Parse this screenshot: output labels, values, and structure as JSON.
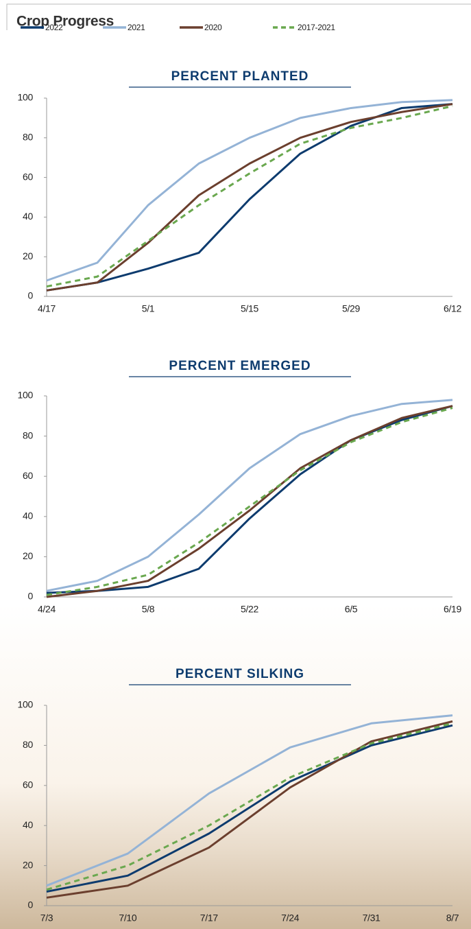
{
  "header": {
    "title": "Crop Progress"
  },
  "chart_data": [
    {
      "type": "line",
      "title": "PERCENT PLANTED",
      "categories": [
        "4/17",
        null,
        "5/1",
        null,
        "5/15",
        null,
        "5/29",
        null,
        "6/12"
      ],
      "series": [
        {
          "name": "2022",
          "color": "#0d3b6e",
          "values": [
            3,
            7,
            14,
            22,
            49,
            72,
            86,
            95,
            97
          ]
        },
        {
          "name": "2021",
          "color": "#94b3d6",
          "values": [
            8,
            17,
            46,
            67,
            80,
            90,
            95,
            98,
            99
          ]
        },
        {
          "name": "2020",
          "color": "#6b3f2e",
          "values": [
            3,
            7,
            27,
            51,
            67,
            80,
            88,
            93,
            97
          ]
        },
        {
          "name": "2017-2021",
          "color": "#6aa84f",
          "dashed": true,
          "values": [
            5,
            10,
            28,
            46,
            62,
            77,
            85,
            90,
            96
          ]
        }
      ],
      "ylim": [
        0,
        100
      ],
      "yticks": [
        0,
        20,
        40,
        60,
        80,
        100
      ]
    },
    {
      "type": "line",
      "title": "PERCENT EMERGED",
      "categories": [
        "4/24",
        null,
        "5/8",
        null,
        "5/22",
        null,
        "6/5",
        null,
        "6/19"
      ],
      "series": [
        {
          "name": "2022",
          "color": "#0d3b6e",
          "values": [
            2,
            3,
            5,
            14,
            39,
            61,
            78,
            88,
            95
          ]
        },
        {
          "name": "2021",
          "color": "#94b3d6",
          "values": [
            3,
            8,
            20,
            41,
            64,
            81,
            90,
            96,
            98
          ]
        },
        {
          "name": "2020",
          "color": "#6b3f2e",
          "values": [
            0,
            3,
            8,
            24,
            43,
            64,
            78,
            89,
            95
          ]
        },
        {
          "name": "2017-2021",
          "color": "#6aa84f",
          "dashed": true,
          "values": [
            1,
            5,
            11,
            27,
            45,
            63,
            77,
            87,
            94
          ]
        }
      ],
      "ylim": [
        0,
        100
      ],
      "yticks": [
        0,
        20,
        40,
        60,
        80,
        100
      ]
    },
    {
      "type": "line",
      "title": "PERCENT SILKING",
      "categories": [
        "7/3",
        "7/10",
        "7/17",
        "7/24",
        "7/31",
        "8/7"
      ],
      "series": [
        {
          "name": "2022",
          "color": "#0d3b6e",
          "values": [
            7,
            15,
            36,
            62,
            80,
            90
          ]
        },
        {
          "name": "2021",
          "color": "#94b3d6",
          "values": [
            10,
            26,
            56,
            79,
            91,
            95
          ]
        },
        {
          "name": "2020",
          "color": "#6b3f2e",
          "values": [
            4,
            10,
            29,
            59,
            82,
            92
          ]
        },
        {
          "name": "2017-2021",
          "color": "#6aa84f",
          "dashed": true,
          "values": [
            8,
            20,
            40,
            64,
            81,
            91
          ]
        }
      ],
      "ylim": [
        0,
        100
      ],
      "yticks": [
        0,
        20,
        40,
        60,
        80,
        100
      ]
    }
  ]
}
